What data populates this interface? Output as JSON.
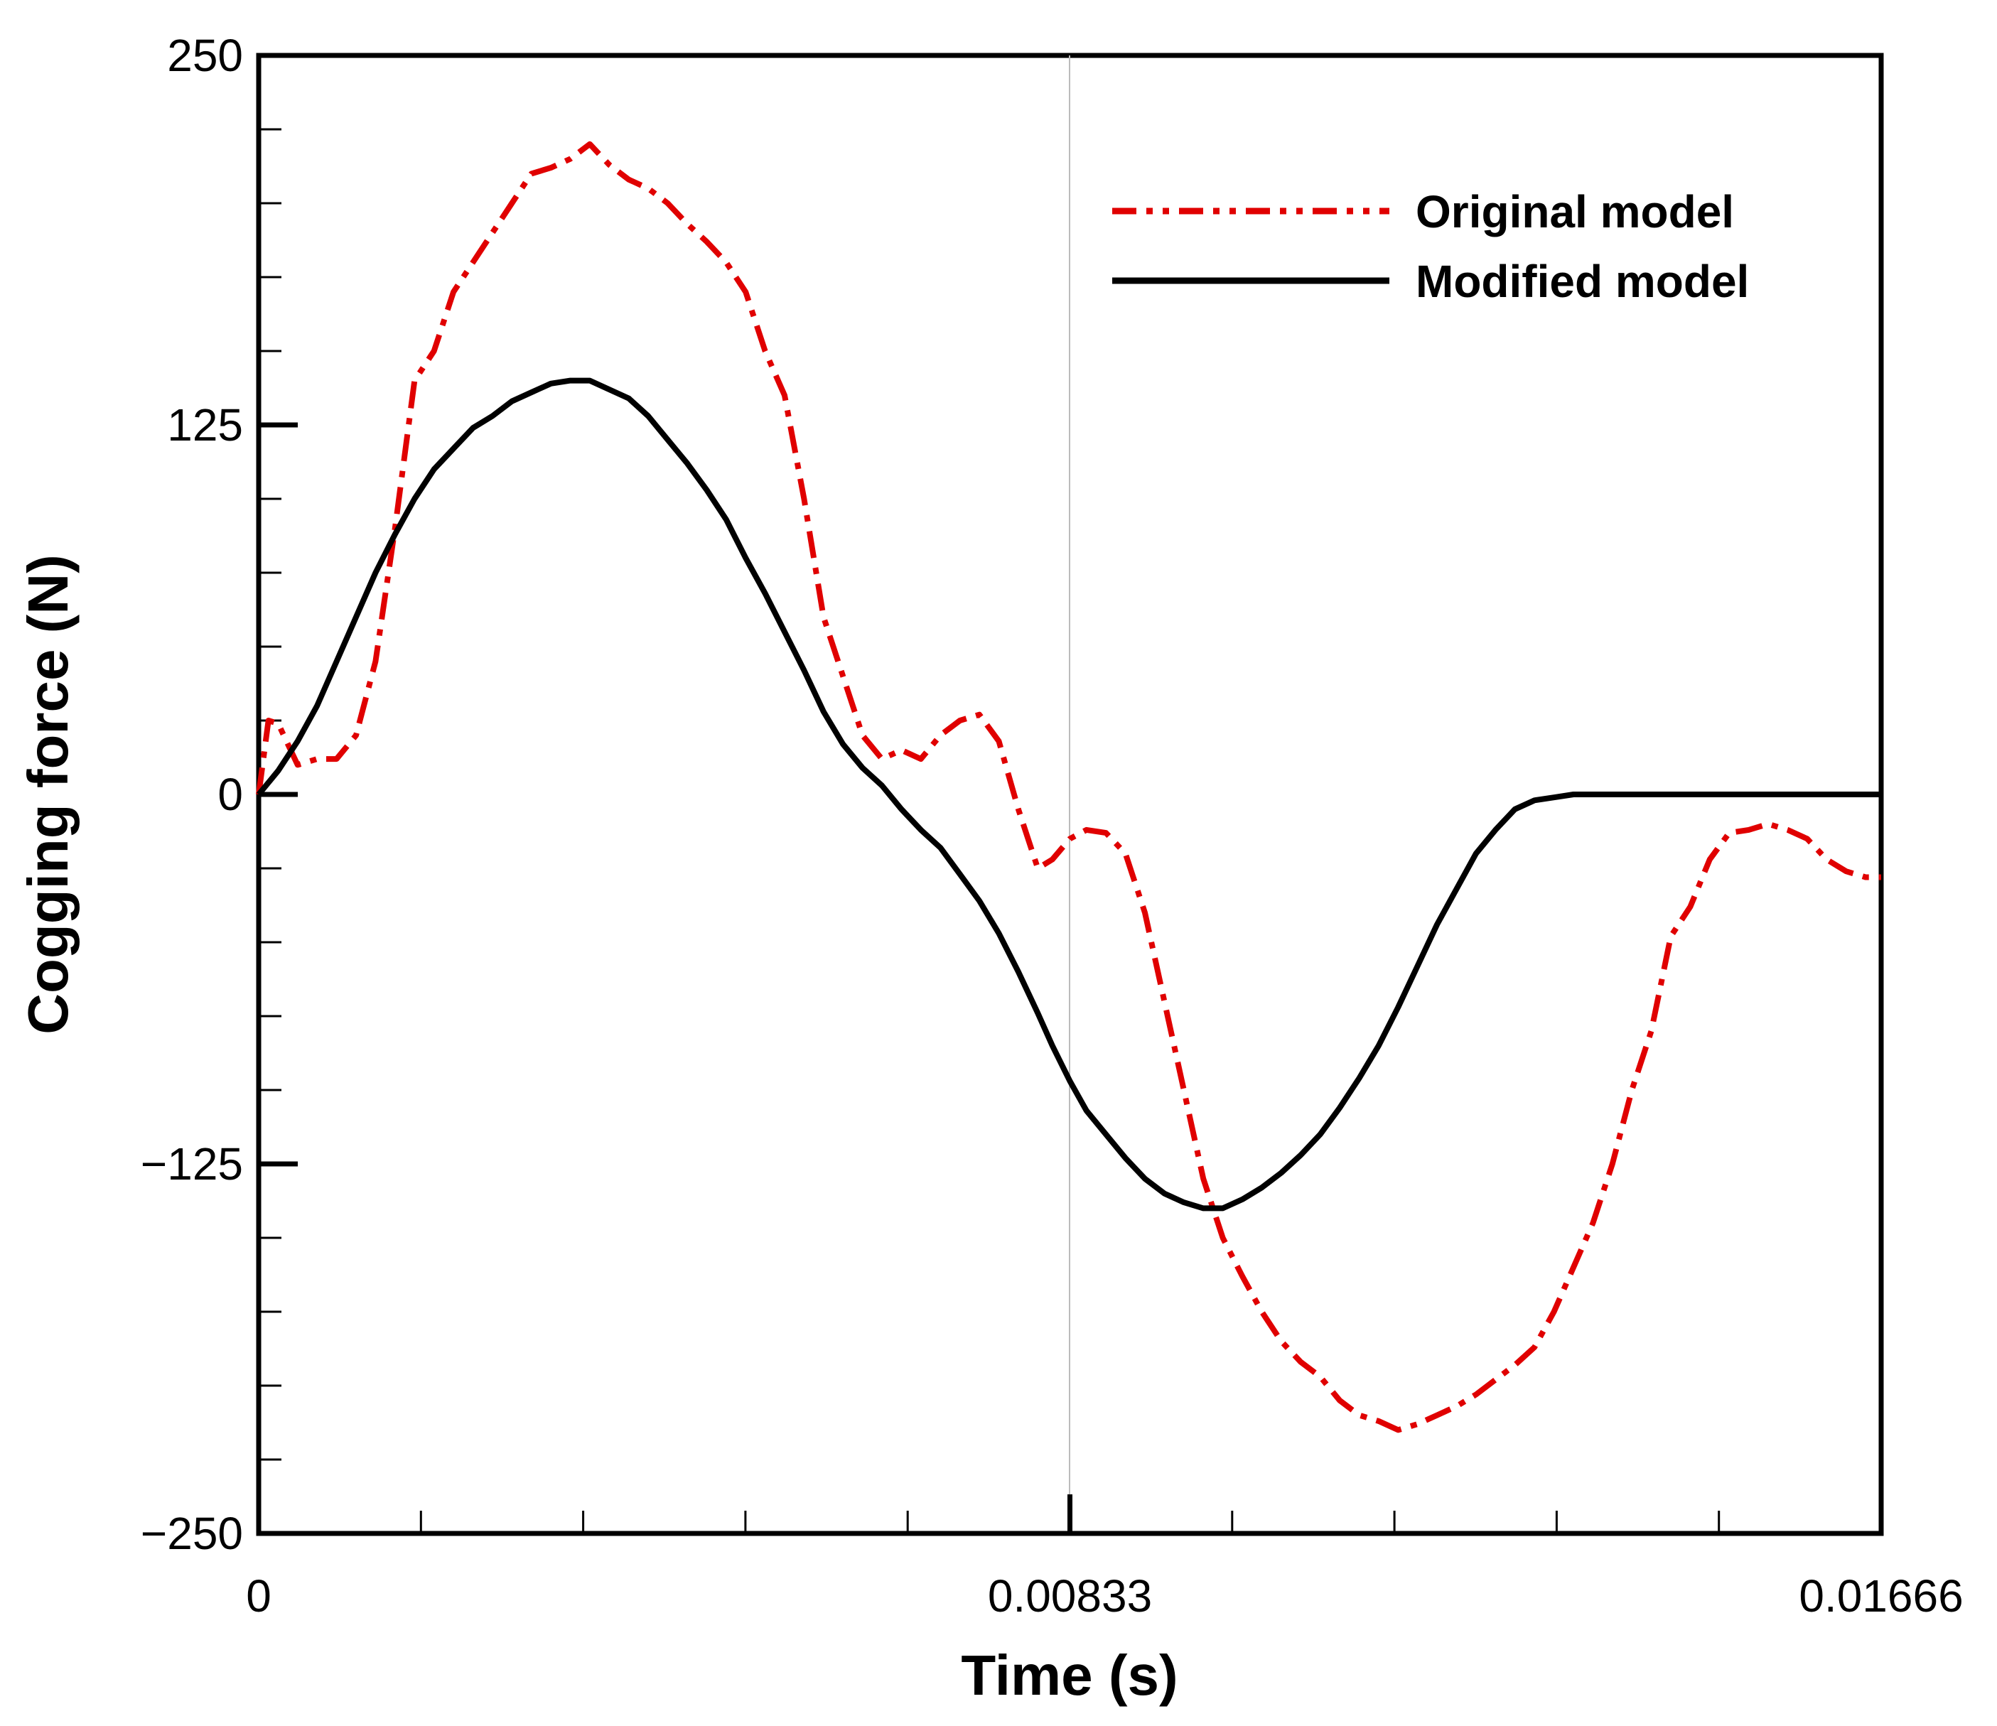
{
  "chart_data": {
    "type": "line",
    "title": "",
    "xlabel": "Time (s)",
    "ylabel": "Cogging force (N)",
    "xlim": [
      0,
      0.01666
    ],
    "ylim": [
      -250,
      250
    ],
    "x_ticks": [
      0,
      0.00833,
      0.01666
    ],
    "x_tick_labels": [
      "0",
      "0.00833",
      "0.01666"
    ],
    "y_ticks": [
      250,
      125,
      0,
      -125,
      -250
    ],
    "y_tick_labels": [
      "250",
      "125",
      "0",
      "−125",
      "−250"
    ],
    "grid": false,
    "legend_position": "top-right",
    "series": [
      {
        "name": "Original model",
        "color": "#e00000",
        "style": "dash-dot",
        "x": [
          0,
          0.0001,
          0.0002,
          0.0004,
          0.0006,
          0.0008,
          0.001,
          0.0012,
          0.0014,
          0.0016,
          0.0018,
          0.002,
          0.0022,
          0.0024,
          0.0026,
          0.0028,
          0.003,
          0.0032,
          0.0034,
          0.0036,
          0.0038,
          0.004,
          0.0042,
          0.0044,
          0.0046,
          0.0048,
          0.005,
          0.0052,
          0.0054,
          0.0056,
          0.0058,
          0.006,
          0.0062,
          0.0064,
          0.0066,
          0.0068,
          0.007,
          0.0072,
          0.0074,
          0.0076,
          0.0078,
          0.008,
          0.00815,
          0.00833,
          0.0085,
          0.0087,
          0.0089,
          0.0091,
          0.0093,
          0.0095,
          0.0097,
          0.0099,
          0.0101,
          0.0103,
          0.0105,
          0.0107,
          0.0109,
          0.0111,
          0.0113,
          0.0115,
          0.0117,
          0.0119,
          0.0121,
          0.0123,
          0.0125,
          0.0127,
          0.0129,
          0.0131,
          0.0133,
          0.0135,
          0.0137,
          0.0139,
          0.0141,
          0.0143,
          0.0145,
          0.0147,
          0.0149,
          0.0151,
          0.0153,
          0.0155,
          0.0157,
          0.0159,
          0.0161,
          0.0163,
          0.0165,
          0.01666
        ],
        "y": [
          0,
          25,
          24,
          10,
          12,
          12,
          20,
          45,
          90,
          140,
          150,
          170,
          180,
          190,
          200,
          210,
          212,
          215,
          220,
          213,
          208,
          205,
          200,
          193,
          187,
          180,
          170,
          150,
          135,
          100,
          60,
          40,
          20,
          12,
          15,
          12,
          20,
          25,
          27,
          18,
          -5,
          -25,
          -22,
          -15,
          -12,
          -13,
          -20,
          -40,
          -70,
          -100,
          -130,
          -150,
          -163,
          -175,
          -185,
          -192,
          -197,
          -205,
          -210,
          -212,
          -215,
          -213,
          -210,
          -207,
          -203,
          -198,
          -193,
          -187,
          -175,
          -160,
          -145,
          -125,
          -100,
          -80,
          -48,
          -38,
          -22,
          -13,
          -12,
          -10,
          -12,
          -15,
          -22,
          -26,
          -28,
          -28
        ],
        "values_note": "estimated from plot"
      },
      {
        "name": "Modified model",
        "color": "#000000",
        "style": "solid",
        "x": [
          0,
          0.0002,
          0.0004,
          0.0006,
          0.0008,
          0.001,
          0.0012,
          0.0014,
          0.0016,
          0.0018,
          0.002,
          0.0022,
          0.0024,
          0.0026,
          0.0028,
          0.003,
          0.0032,
          0.0034,
          0.0036,
          0.0038,
          0.004,
          0.0042,
          0.0044,
          0.0046,
          0.0048,
          0.005,
          0.0052,
          0.0054,
          0.0056,
          0.0058,
          0.006,
          0.0062,
          0.0064,
          0.0066,
          0.0068,
          0.007,
          0.0072,
          0.0074,
          0.0076,
          0.0078,
          0.008,
          0.00815,
          0.00833,
          0.0085,
          0.0087,
          0.0089,
          0.0091,
          0.0093,
          0.0095,
          0.0097,
          0.0099,
          0.0101,
          0.0103,
          0.0105,
          0.0107,
          0.0109,
          0.0111,
          0.0113,
          0.0115,
          0.0117,
          0.0119,
          0.0121,
          0.0123,
          0.0125,
          0.0127,
          0.0129,
          0.0131,
          0.0133,
          0.0135,
          0.0137,
          0.0139,
          0.0141,
          0.0143,
          0.0145,
          0.0147,
          0.0149,
          0.0151,
          0.0153,
          0.0155,
          0.0157,
          0.0159,
          0.0161,
          0.0163,
          0.0165,
          0.01666
        ],
        "y": [
          0,
          8,
          18,
          30,
          45,
          60,
          75,
          88,
          100,
          110,
          117,
          124,
          128,
          133,
          136,
          139,
          140,
          140,
          137,
          134,
          128,
          120,
          112,
          103,
          93,
          80,
          68,
          55,
          42,
          28,
          17,
          9,
          3,
          -5,
          -12,
          -18,
          -27,
          -36,
          -47,
          -60,
          -74,
          -85,
          -97,
          -107,
          -115,
          -123,
          -130,
          -135,
          -138,
          -140,
          -140,
          -137,
          -133,
          -128,
          -122,
          -115,
          -106,
          -96,
          -85,
          -72,
          -58,
          -44,
          -32,
          -20,
          -12,
          -5,
          -2,
          -1,
          0,
          0,
          0,
          0,
          0,
          0,
          0,
          0,
          0,
          0,
          0,
          0,
          0,
          0,
          0,
          0,
          0
        ],
        "values_note": "estimated from plot"
      }
    ]
  }
}
